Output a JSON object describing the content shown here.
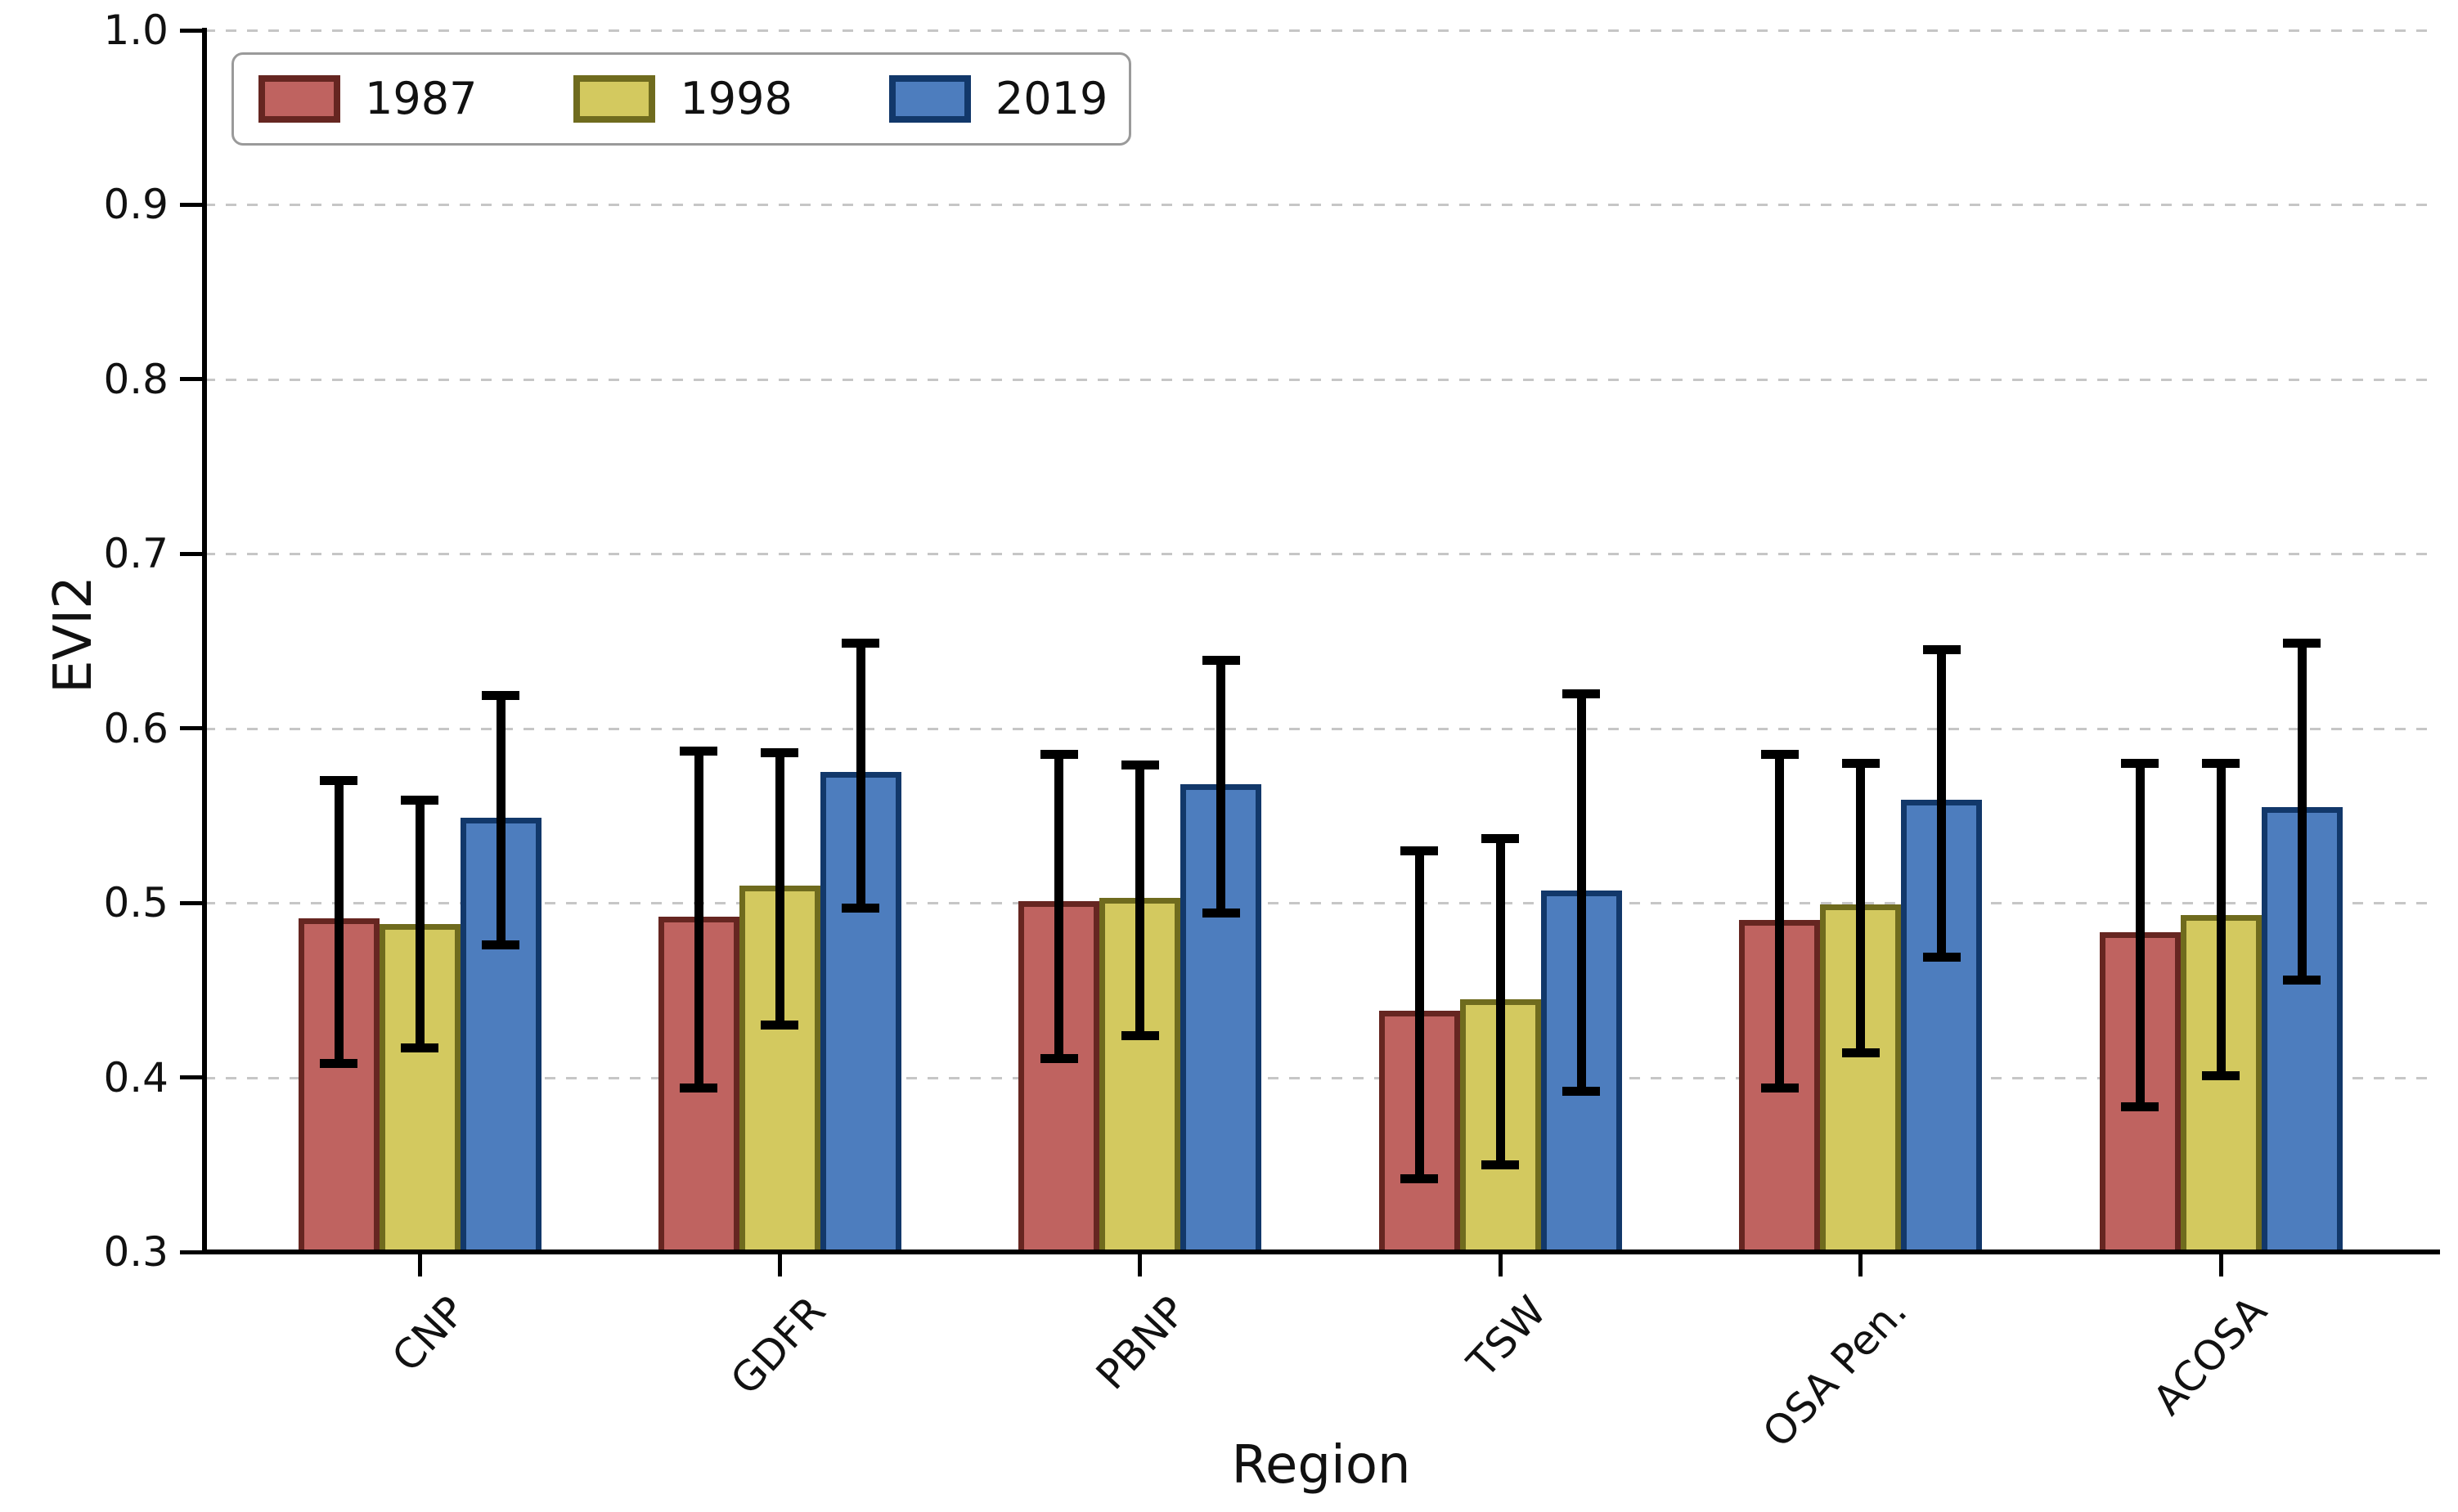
{
  "figure": {
    "background": "#ffffff"
  },
  "chart_data": {
    "type": "bar",
    "title": "",
    "xlabel": "Region",
    "ylabel": "EVI2",
    "categories": [
      "CNP",
      "GDFR",
      "PBNP",
      "TSW",
      "OSA Pen.",
      "ACOSA"
    ],
    "series": [
      {
        "name": "1987",
        "fill": "#bf6360",
        "edge": "#662621",
        "values": [
          0.491,
          0.492,
          0.501,
          0.438,
          0.49,
          0.483
        ],
        "err_low": [
          0.408,
          0.394,
          0.411,
          0.342,
          0.394,
          0.383
        ],
        "err_high": [
          0.57,
          0.587,
          0.585,
          0.53,
          0.585,
          0.58
        ]
      },
      {
        "name": "1998",
        "fill": "#d3c95f",
        "edge": "#6f6b1e",
        "values": [
          0.488,
          0.51,
          0.503,
          0.445,
          0.499,
          0.493
        ],
        "err_low": [
          0.417,
          0.43,
          0.424,
          0.35,
          0.414,
          0.401
        ],
        "err_high": [
          0.559,
          0.586,
          0.579,
          0.537,
          0.58,
          0.58
        ]
      },
      {
        "name": "2019",
        "fill": "#4d7dbe",
        "edge": "#12386a",
        "values": [
          0.549,
          0.575,
          0.568,
          0.507,
          0.559,
          0.555
        ],
        "err_low": [
          0.476,
          0.497,
          0.494,
          0.392,
          0.469,
          0.456
        ],
        "err_high": [
          0.619,
          0.649,
          0.639,
          0.62,
          0.645,
          0.649
        ]
      }
    ],
    "ylim": [
      0.3,
      1.0
    ],
    "yticks": [
      0.3,
      0.4,
      0.5,
      0.6,
      0.7,
      0.8,
      0.9,
      1.0
    ],
    "ytick_labels": [
      "0.3",
      "0.4",
      "0.5",
      "0.6",
      "0.7",
      "0.8",
      "0.9",
      "1.0"
    ],
    "grid": "horizontal-dashed",
    "legend_position": "upper-left",
    "error_bars": true,
    "colors": {
      "grid": "#c6c6c6",
      "axis": "#000000",
      "errorbar": "#000000",
      "legend_border": "#9a9a9a"
    }
  }
}
